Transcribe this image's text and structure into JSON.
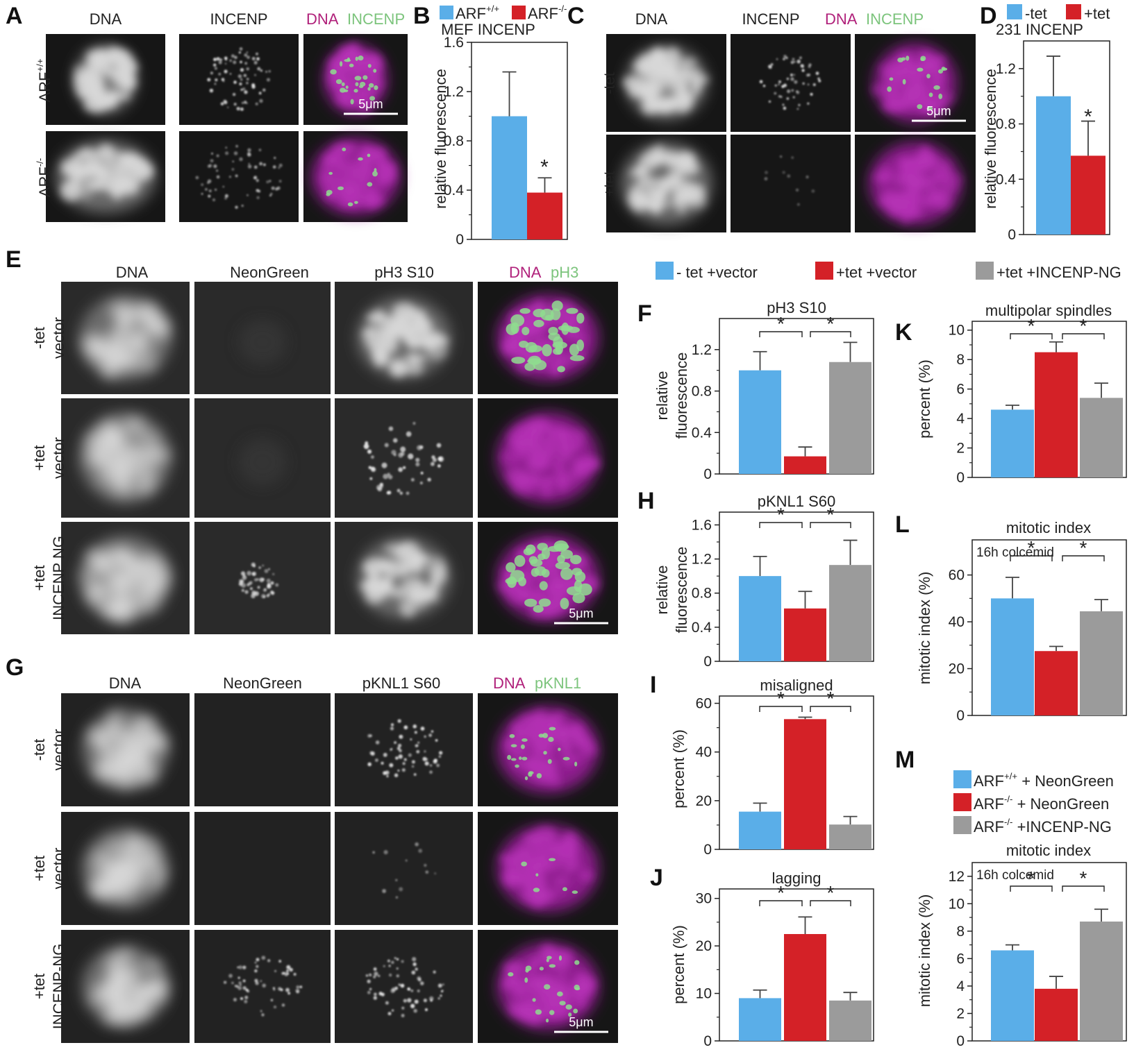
{
  "colors": {
    "blue": "#5aaee8",
    "red": "#d42127",
    "gray": "#9b9b9b",
    "magenta": "#b0207a",
    "green": "#7cc47c"
  },
  "panels": {
    "A": {
      "letter": "A",
      "cols": [
        "DNA",
        "INCENP",
        "DNA",
        "INCENP"
      ],
      "rows": [
        "ARF",
        "ARF"
      ],
      "row_sup": [
        "+/+",
        "-/-"
      ],
      "scale": "5μm"
    },
    "B": {
      "letter": "B",
      "legend": [
        {
          "label": "ARF",
          "sup": "+/+"
        },
        {
          "label": "ARF",
          "sup": "-/-"
        }
      ],
      "title": "MEF INCENP",
      "ylabel": "relative fluorescence"
    },
    "C": {
      "letter": "C",
      "cols": [
        "DNA",
        "INCENP",
        "DNA",
        "INCENP"
      ],
      "rows": [
        "-tet",
        "+tet"
      ],
      "scale": "5μm"
    },
    "D": {
      "letter": "D",
      "legend": [
        "-tet",
        "+tet"
      ],
      "title": "231 INCENP",
      "ylabel": "relative fluorescence"
    },
    "E": {
      "letter": "E",
      "cols": [
        "DNA",
        "NeonGreen",
        "pH3 S10",
        "DNA",
        "pH3"
      ],
      "rows": [
        [
          "-tet",
          "vector"
        ],
        [
          "+tet",
          "vector"
        ],
        [
          "+tet",
          "INCENP NG"
        ]
      ],
      "scale": "5μm"
    },
    "G": {
      "letter": "G",
      "cols": [
        "DNA",
        "NeonGreen",
        "pKNL1 S60",
        "DNA",
        "pKNL1"
      ],
      "rows": [
        [
          "-tet",
          "vector"
        ],
        [
          "+tet",
          "vector"
        ],
        [
          "+tet",
          "INCENP-NG"
        ]
      ],
      "scale": "5μm"
    },
    "legend_main": [
      "- tet +vector",
      "+tet +vector",
      "+tet +INCENP-NG"
    ],
    "legend_M": [
      {
        "label": "ARF",
        "sup": "+/+",
        "rest": " + NeonGreen"
      },
      {
        "label": "ARF",
        "sup": "-/-",
        "rest": "  + NeonGreen"
      },
      {
        "label": "ARF",
        "sup": "-/-",
        "rest": " +INCENP-NG"
      }
    ],
    "star": "*"
  },
  "chart_data": [
    {
      "id": "B",
      "type": "bar",
      "categories": [
        "ARF+/+",
        "ARF-/-"
      ],
      "values": [
        1.0,
        0.38
      ],
      "errors": [
        0.36,
        0.12
      ],
      "ylim": [
        0,
        1.6
      ],
      "yticks": [
        "0",
        "0.4",
        "0.8",
        "1.2",
        "1.6"
      ],
      "ylabel": "relative fluorescence",
      "title": "MEF INCENP",
      "sig": "*"
    },
    {
      "id": "D",
      "type": "bar",
      "categories": [
        "-tet",
        "+tet"
      ],
      "values": [
        1.0,
        0.57
      ],
      "errors": [
        0.29,
        0.25
      ],
      "ylim": [
        0,
        1.4
      ],
      "yticks": [
        "0",
        "0.4",
        "0.8",
        "1.2"
      ],
      "ylabel": "relative fluorescence",
      "title": "231 INCENP",
      "sig": "*"
    },
    {
      "id": "F",
      "letter": "F",
      "type": "bar",
      "categories": [
        "- tet +vector",
        "+tet +vector",
        "+tet +INCENP-NG"
      ],
      "values": [
        1.0,
        0.17,
        1.08
      ],
      "errors": [
        0.18,
        0.09,
        0.19
      ],
      "ylim": [
        0,
        1.5
      ],
      "yticks": [
        "0",
        "0.4",
        "0.8",
        "1.2"
      ],
      "ylabel": [
        "relative",
        "fluorescence"
      ],
      "title": "pH3 S10"
    },
    {
      "id": "H",
      "letter": "H",
      "type": "bar",
      "categories": [
        "- tet +vector",
        "+tet +vector",
        "+tet +INCENP-NG"
      ],
      "values": [
        1.0,
        0.62,
        1.13
      ],
      "errors": [
        0.23,
        0.2,
        0.29
      ],
      "ylim": [
        0,
        1.75
      ],
      "yticks": [
        "0",
        "0.4",
        "0.8",
        "1.2",
        "1.6"
      ],
      "ylabel": [
        "relative",
        "fluorescence"
      ],
      "title": "pKNL1 S60"
    },
    {
      "id": "I",
      "letter": "I",
      "type": "bar",
      "categories": [
        "- tet +vector",
        "+tet +vector",
        "+tet +INCENP-NG"
      ],
      "values": [
        15.5,
        53.5,
        10.2
      ],
      "errors": [
        3.5,
        0.8,
        3.3
      ],
      "ylim": [
        0,
        63
      ],
      "yticks": [
        "0",
        "20",
        "40",
        "60"
      ],
      "ylabel": [
        "percent (%)"
      ],
      "title": "misaligned"
    },
    {
      "id": "J",
      "letter": "J",
      "type": "bar",
      "categories": [
        "- tet +vector",
        "+tet +vector",
        "+tet +INCENP-NG"
      ],
      "values": [
        9.0,
        22.5,
        8.5
      ],
      "errors": [
        1.7,
        3.6,
        1.7
      ],
      "ylim": [
        0,
        32
      ],
      "yticks": [
        "0",
        "10",
        "20",
        "30"
      ],
      "ylabel": [
        "percent (%)"
      ],
      "title": "lagging"
    },
    {
      "id": "K",
      "letter": "K",
      "type": "bar",
      "categories": [
        "- tet +vector",
        "+tet +vector",
        "+tet +INCENP-NG"
      ],
      "values": [
        4.6,
        8.5,
        5.4
      ],
      "errors": [
        0.3,
        0.7,
        1.0
      ],
      "ylim": [
        0,
        10.6
      ],
      "yticks": [
        "0",
        "2",
        "4",
        "6",
        "8",
        "10"
      ],
      "ylabel": [
        "percent (%)"
      ],
      "title": "multipolar spindles"
    },
    {
      "id": "L",
      "letter": "L",
      "type": "bar",
      "categories": [
        "- tet +vector",
        "+tet +vector",
        "+tet +INCENP-NG"
      ],
      "values": [
        50,
        27.5,
        44.5
      ],
      "errors": [
        9,
        2,
        5
      ],
      "ylim": [
        0,
        75
      ],
      "yticks": [
        "0",
        "20",
        "40",
        "60"
      ],
      "ylabel": [
        "mitotic index (%)"
      ],
      "title": "mitotic index",
      "note": "16h colcemid"
    },
    {
      "id": "M",
      "letter": "M",
      "type": "bar",
      "categories": [
        "ARF+/+ + NeonGreen",
        "ARF-/- + NeonGreen",
        "ARF-/- +INCENP-NG"
      ],
      "values": [
        6.6,
        3.8,
        8.7
      ],
      "errors": [
        0.4,
        0.9,
        0.9
      ],
      "ylim": [
        0,
        13
      ],
      "yticks": [
        "0",
        "2",
        "4",
        "6",
        "8",
        "10",
        "12"
      ],
      "ylabel": [
        "mitotic index (%)"
      ],
      "title": "mitotic index",
      "note": "16h colcemid"
    }
  ]
}
